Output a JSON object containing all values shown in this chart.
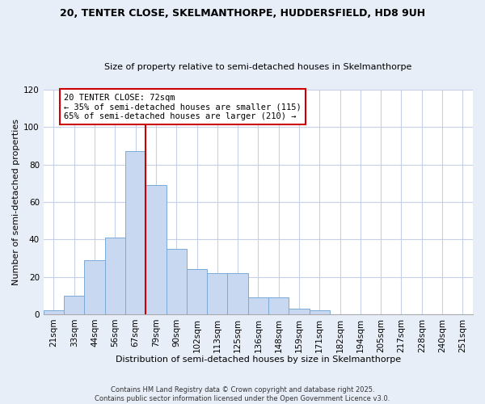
{
  "title": "20, TENTER CLOSE, SKELMANTHORPE, HUDDERSFIELD, HD8 9UH",
  "subtitle": "Size of property relative to semi-detached houses in Skelmanthorpe",
  "xlabel": "Distribution of semi-detached houses by size in Skelmanthorpe",
  "ylabel": "Number of semi-detached properties",
  "categories": [
    "21sqm",
    "33sqm",
    "44sqm",
    "56sqm",
    "67sqm",
    "79sqm",
    "90sqm",
    "102sqm",
    "113sqm",
    "125sqm",
    "136sqm",
    "148sqm",
    "159sqm",
    "171sqm",
    "182sqm",
    "194sqm",
    "205sqm",
    "217sqm",
    "228sqm",
    "240sqm",
    "251sqm"
  ],
  "values": [
    2,
    10,
    29,
    41,
    87,
    69,
    35,
    24,
    22,
    22,
    9,
    9,
    3,
    2,
    0,
    0,
    0,
    0,
    0,
    0,
    0
  ],
  "bar_color": "#c8d8f0",
  "bar_edge_color": "#7aaad8",
  "vline_x": 4.5,
  "vline_label": "20 TENTER CLOSE: 72sqm",
  "smaller_pct": "35%",
  "smaller_n": 115,
  "larger_pct": "65%",
  "larger_n": 210,
  "annotation_box_color": "#cc0000",
  "ylim": [
    0,
    120
  ],
  "yticks": [
    0,
    20,
    40,
    60,
    80,
    100,
    120
  ],
  "footnote": "Contains HM Land Registry data © Crown copyright and database right 2025.\nContains public sector information licensed under the Open Government Licence v3.0.",
  "bg_color": "#e8eef8",
  "plot_bg_color": "#ffffff",
  "grid_color": "#c8d0e8"
}
